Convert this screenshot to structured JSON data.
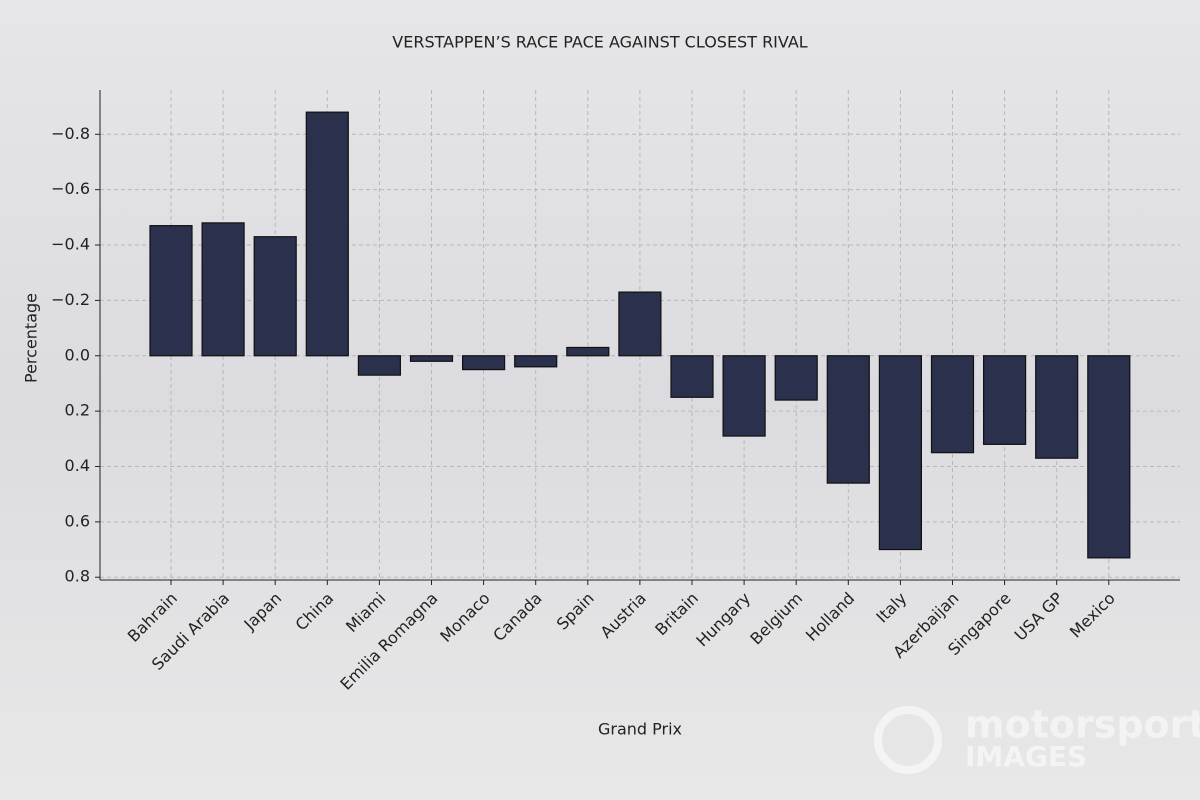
{
  "chart_data": {
    "type": "bar",
    "title": "VERSTAPPEN’S RACE PACE AGAINST CLOSEST RIVAL",
    "x_label": "Grand Prix",
    "y_label": "Percentage",
    "watermark": [
      "motorsport",
      "IMAGES"
    ],
    "categories": [
      "Bahrain",
      "Saudi Arabia",
      "Japan",
      "China",
      "Miami",
      "Emilia Romagna",
      "Monaco",
      "Canada",
      "Spain",
      "Austria",
      "Britain",
      "Hungary",
      "Belgium",
      "Holland",
      "Italy",
      "Azerbaijan",
      "Singapore",
      "USA GP",
      "Mexico"
    ],
    "values": [
      -0.47,
      -0.48,
      -0.43,
      -0.88,
      0.07,
      0.02,
      0.05,
      0.04,
      -0.03,
      -0.23,
      0.15,
      0.29,
      0.16,
      0.46,
      0.7,
      0.35,
      0.32,
      0.37,
      0.73
    ],
    "color": "#2b304d",
    "ylim": [
      0.81,
      -0.96
    ],
    "inverted_y": true,
    "yticks": [
      {
        "value": -0.8,
        "label": "−0.8"
      },
      {
        "value": -0.6,
        "label": "−0.6"
      },
      {
        "value": -0.4,
        "label": "−0.4"
      },
      {
        "value": -0.2,
        "label": "−0.2"
      },
      {
        "value": 0,
        "label": "0.0"
      },
      0.2,
      0.4,
      0.6,
      0.8
    ],
    "grid": true
  }
}
